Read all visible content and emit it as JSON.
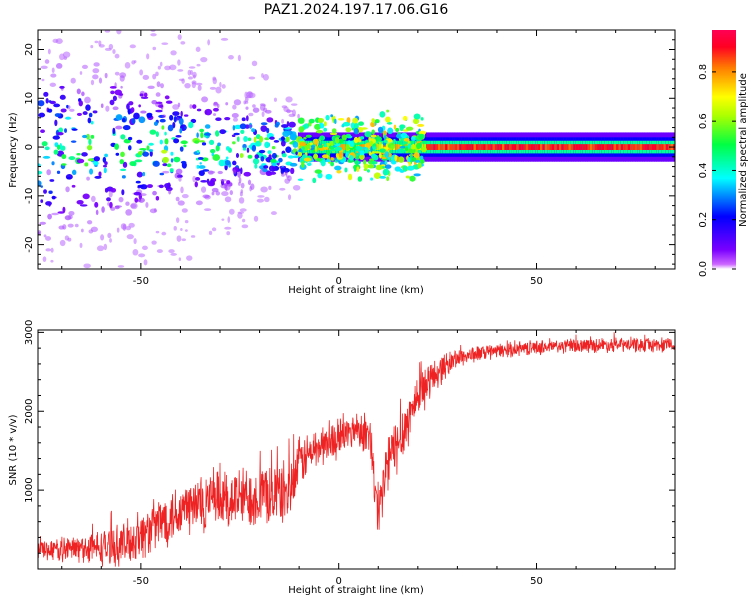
{
  "figure": {
    "title": "PAZ1.2024.197.17.06.G16"
  },
  "chart_data": [
    {
      "type": "heatmap",
      "xlabel": "Height of straight line (km)",
      "ylabel": "Frequency (Hz)",
      "xlim": [
        -76,
        85
      ],
      "ylim": [
        -25,
        24
      ],
      "x_ticks": [
        -50,
        0,
        50
      ],
      "y_ticks": [
        -20,
        -10,
        0,
        10,
        20
      ],
      "grid": false,
      "colormap": "gist_rainbow_r",
      "colorbar": {
        "label": "Normalized spectral amplitude",
        "range": [
          0,
          0.97
        ],
        "ticks": [
          "0.0",
          "0.2",
          "0.4",
          "0.6",
          "0.8"
        ],
        "tick_values": [
          0.0,
          0.2,
          0.4,
          0.6,
          0.8
        ]
      },
      "description_features": {
        "band_center_hz": 0,
        "noisy_region_x": [
          -76,
          -10
        ],
        "noise_spread_hz": [
          -24,
          22
        ],
        "transition_x": [
          -10,
          22
        ],
        "narrow_band_x": [
          22,
          85
        ],
        "narrow_band_peak": 0.95
      }
    },
    {
      "type": "line",
      "xlabel": "Height of straight line (km)",
      "ylabel": "SNR (10 * v/v)",
      "xlim": [
        -76,
        85
      ],
      "ylim": [
        0,
        3030
      ],
      "x_ticks": [
        -50,
        0,
        50
      ],
      "y_ticks": [
        1000,
        2000,
        3000
      ],
      "grid": false,
      "series": [
        {
          "color": "#ee2222",
          "x": [
            -76,
            -70,
            -65,
            -60,
            -55,
            -50,
            -45,
            -40,
            -35,
            -30,
            -25,
            -20,
            -15,
            -12,
            -10,
            -5,
            0,
            3,
            5,
            8,
            9,
            10,
            11,
            12,
            15,
            18,
            20,
            25,
            30,
            35,
            40,
            45,
            50,
            55,
            60,
            65,
            70,
            75,
            80,
            85
          ],
          "values": [
            250,
            250,
            260,
            270,
            300,
            420,
            600,
            750,
            820,
            860,
            900,
            930,
            960,
            1000,
            1350,
            1550,
            1650,
            1750,
            1800,
            1650,
            1100,
            600,
            900,
            1300,
            1600,
            1950,
            2200,
            2500,
            2680,
            2730,
            2760,
            2790,
            2810,
            2820,
            2830,
            2840,
            2840,
            2840,
            2840,
            2840
          ],
          "noise_amp": [
            120,
            150,
            180,
            220,
            260,
            300,
            330,
            360,
            380,
            380,
            380,
            380,
            380,
            380,
            300,
            250,
            230,
            220,
            220,
            260,
            350,
            400,
            400,
            380,
            360,
            320,
            280,
            200,
            120,
            100,
            90,
            90,
            90,
            90,
            90,
            90,
            90,
            90,
            90,
            90
          ]
        }
      ]
    }
  ]
}
